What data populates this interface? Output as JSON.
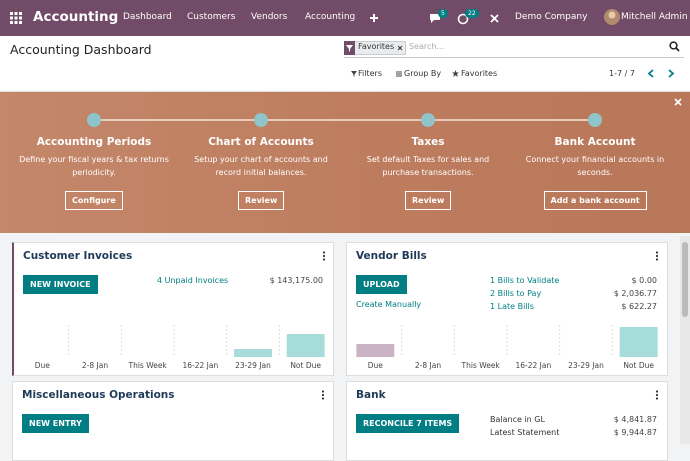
{
  "navbar": {
    "app": "Accounting",
    "menus": [
      "Dashboard",
      "Customers",
      "Vendors",
      "Accounting"
    ],
    "messages_badge": 5,
    "activities_badge": 22,
    "company": "Demo Company",
    "user": "Mitchell Admin"
  },
  "control_panel": {
    "title": "Accounting Dashboard",
    "facet": "Favorites",
    "search_placeholder": "Search...",
    "filters": "Filters",
    "group_by": "Group By",
    "favorites": "Favorites",
    "pager": "1-7 / 7"
  },
  "onboarding": {
    "steps": [
      {
        "title": "Accounting Periods",
        "description": "Define your fiscal years & tax returns periodicity.",
        "button": "Configure"
      },
      {
        "title": "Chart of Accounts",
        "description": "Setup your chart of accounts and record initial balances.",
        "button": "Review"
      },
      {
        "title": "Taxes",
        "description": "Set default Taxes for sales and purchase transactions.",
        "button": "Review"
      },
      {
        "title": "Bank Account",
        "description": "Connect your financial accounts in seconds.",
        "button": "Add a bank account"
      }
    ]
  },
  "cards": [
    {
      "title": "Customer Invoices",
      "button": "NEW INVOICE",
      "lines": [
        {
          "label": "4 Unpaid Invoices",
          "amount": "$ 143,175.00"
        }
      ],
      "graph": {
        "type": "bar",
        "categories": [
          "Due",
          "2-8 Jan",
          "This Week",
          "16-22 Jan",
          "23-29 Jan",
          "Not Due"
        ],
        "values": [
          0,
          0,
          0,
          0,
          8,
          23
        ],
        "ylim": [
          0,
          32
        ],
        "colors": [
          "#c9b3c4",
          "#a6dcd9",
          "#a6dcd9",
          "#a6dcd9",
          "#a6dcd9",
          "#a6dcd9"
        ]
      }
    },
    {
      "title": "Vendor Bills",
      "button": "UPLOAD",
      "link": "Create Manually",
      "lines": [
        {
          "label": "1 Bills to Validate",
          "amount": "$ 0.00"
        },
        {
          "label": "2 Bills to Pay",
          "amount": "$ 2,036.77"
        },
        {
          "label": "1 Late Bills",
          "amount": "$ 622.27"
        }
      ],
      "graph": {
        "type": "bar",
        "categories": [
          "Due",
          "2-8 Jan",
          "This Week",
          "16-22 Jan",
          "23-29 Jan",
          "Not Due"
        ],
        "values": [
          13,
          0,
          0,
          0,
          0,
          30
        ],
        "ylim": [
          0,
          32
        ],
        "colors": [
          "#c9b3c4",
          "#a6dcd9",
          "#a6dcd9",
          "#a6dcd9",
          "#a6dcd9",
          "#a6dcd9"
        ]
      }
    },
    {
      "title": "Miscellaneous Operations",
      "button": "NEW ENTRY",
      "lines": []
    },
    {
      "title": "Bank",
      "button": "RECONCILE 7 ITEMS",
      "lines": [
        {
          "label": "Balance in GL",
          "amount": "$ 4,841.87"
        },
        {
          "label": "Latest Statement",
          "amount": "$ 9,944.87"
        }
      ]
    }
  ]
}
